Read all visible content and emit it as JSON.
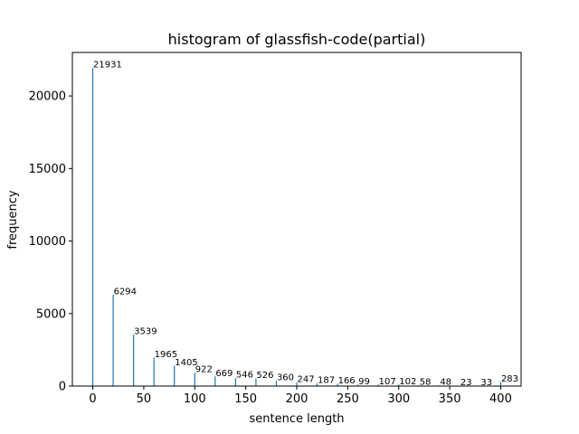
{
  "chart_data": {
    "type": "bar",
    "title": "histogram of glassfish-code(partial)",
    "xlabel": "sentence length",
    "ylabel": "frequency",
    "x": [
      0,
      20,
      40,
      60,
      80,
      100,
      120,
      140,
      160,
      180,
      200,
      220,
      240,
      260,
      280,
      300,
      320,
      340,
      360,
      380,
      400
    ],
    "values": [
      21931,
      6294,
      3539,
      1965,
      1405,
      922,
      669,
      546,
      526,
      360,
      247,
      187,
      166,
      99,
      107,
      102,
      58,
      48,
      23,
      33,
      283
    ],
    "data_labels": [
      "21931",
      "6294",
      "3539",
      "1965",
      "1405",
      "922",
      "669",
      "546",
      "526",
      "360",
      "247",
      "187",
      "166",
      "99",
      "107",
      "102",
      "58",
      "48",
      "23",
      "33",
      "283"
    ],
    "xlim": [
      -20,
      420
    ],
    "ylim": [
      0,
      23000
    ],
    "xticks": [
      0,
      50,
      100,
      150,
      200,
      250,
      300,
      350,
      400
    ],
    "xtick_labels": [
      "0",
      "50",
      "100",
      "150",
      "200",
      "250",
      "300",
      "350",
      "400"
    ],
    "yticks": [
      0,
      5000,
      10000,
      15000,
      20000
    ],
    "ytick_labels": [
      "0",
      "5000",
      "10000",
      "15000",
      "20000"
    ],
    "bar_color": "#1f77b4",
    "grid": false,
    "legend": false
  }
}
